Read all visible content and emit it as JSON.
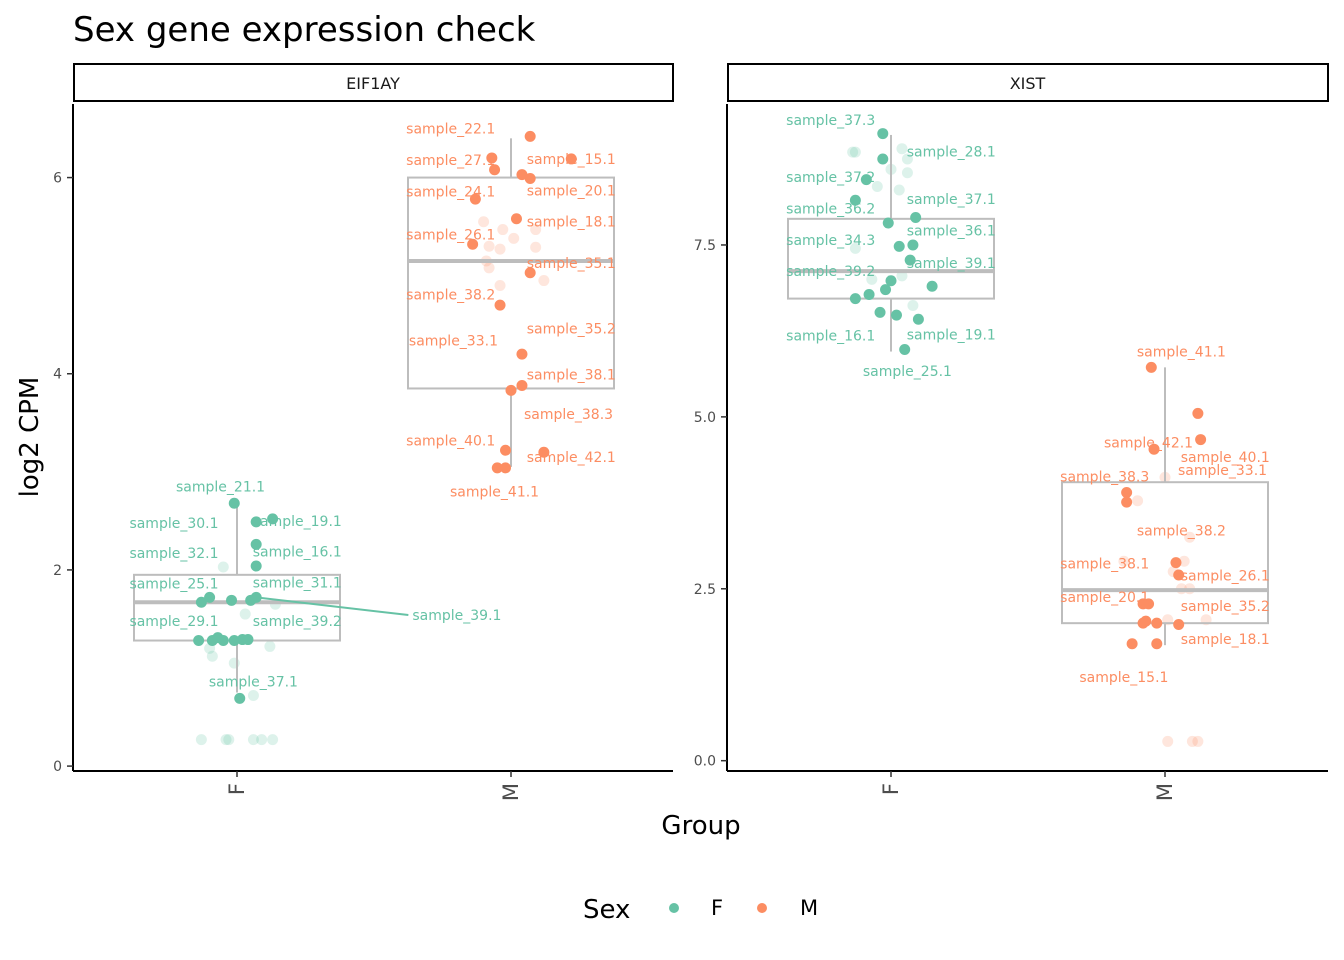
{
  "chart_data": {
    "type": "scatter",
    "title": "Sex gene expression check",
    "xlabel": "Group",
    "ylabel": "log2 CPM",
    "categories": [
      "F",
      "M"
    ],
    "colors": {
      "F": "#66c2a5",
      "M": "#fc8d62",
      "box": "#bdbdbd"
    },
    "legend": {
      "title": "Sex",
      "position": "bottom",
      "entries": [
        "F",
        "M"
      ]
    },
    "panels": [
      {
        "name": "EIF1AY",
        "ylim": [
          -0.05,
          6.75
        ],
        "yticks": [
          0,
          2,
          4,
          6
        ],
        "ytick_labels": [
          "0",
          "2",
          "4",
          "6"
        ],
        "boxes": [
          {
            "group": "F",
            "q1": 1.28,
            "median": 1.67,
            "q3": 1.95,
            "wlow": 0.75,
            "whigh": 2.68
          },
          {
            "group": "M",
            "q1": 3.85,
            "median": 5.15,
            "q3": 6.0,
            "wlow": 3.05,
            "whigh": 6.4
          }
        ],
        "points": [
          {
            "g": "F",
            "x": -0.01,
            "y": 2.68,
            "label": "sample_21.1",
            "lx": -0.06,
            "ly": 2.85
          },
          {
            "g": "F",
            "x": 0.07,
            "y": 2.49,
            "label": "sample_30.1",
            "lx": -0.23,
            "ly": 2.48
          },
          {
            "g": "F",
            "x": 0.13,
            "y": 2.52,
            "label": "sample_19.1",
            "lx": 0.22,
            "ly": 2.5
          },
          {
            "g": "F",
            "x": 0.07,
            "y": 2.26,
            "label": "sample_32.1",
            "lx": -0.23,
            "ly": 2.17
          },
          {
            "g": "F",
            "x": 0.07,
            "y": 2.04,
            "label": "sample_16.1",
            "lx": 0.22,
            "ly": 2.19
          },
          {
            "g": "F",
            "x": -0.13,
            "y": 1.67,
            "label": "sample_25.1",
            "lx": -0.23,
            "ly": 1.86
          },
          {
            "g": "F",
            "x": -0.1,
            "y": 1.72,
            "label": "sample_31.1",
            "lx": 0.22,
            "ly": 1.87
          },
          {
            "g": "F",
            "x": 0.07,
            "y": 1.72,
            "label": "sample_39.1",
            "lx": 0.64,
            "ly": 1.54,
            "seg": true
          },
          {
            "g": "F",
            "x": -0.02,
            "y": 1.69,
            "label": "",
            "lx": 0,
            "ly": 0
          },
          {
            "g": "F",
            "x": 0.05,
            "y": 1.69,
            "label": "",
            "lx": 0,
            "ly": 0
          },
          {
            "g": "F",
            "x": -0.14,
            "y": 1.28,
            "label": "sample_29.1",
            "lx": -0.23,
            "ly": 1.48
          },
          {
            "g": "F",
            "x": -0.09,
            "y": 1.28,
            "label": "sample_39.2",
            "lx": 0.22,
            "ly": 1.48
          },
          {
            "g": "F",
            "x": -0.07,
            "y": 1.31,
            "label": "",
            "lx": 0,
            "ly": 0
          },
          {
            "g": "F",
            "x": -0.05,
            "y": 1.28,
            "label": "",
            "lx": 0,
            "ly": 0
          },
          {
            "g": "F",
            "x": -0.01,
            "y": 1.28,
            "label": "",
            "lx": 0,
            "ly": 0
          },
          {
            "g": "F",
            "x": 0.02,
            "y": 1.29,
            "label": "",
            "lx": 0,
            "ly": 0
          },
          {
            "g": "F",
            "x": 0.04,
            "y": 1.29,
            "label": "",
            "lx": 0,
            "ly": 0
          },
          {
            "g": "F",
            "x": 0.01,
            "y": 0.69,
            "label": "sample_37.1",
            "lx": 0.06,
            "ly": 0.86
          },
          {
            "g": "M",
            "x": 0.07,
            "y": 6.42,
            "label": "sample_22.1",
            "lx": -0.22,
            "ly": 6.5
          },
          {
            "g": "M",
            "x": -0.07,
            "y": 6.2,
            "label": "sample_27.1",
            "lx": -0.22,
            "ly": 6.18
          },
          {
            "g": "M",
            "x": 0.22,
            "y": 6.19,
            "label": "sample_15.1",
            "lx": 0.22,
            "ly": 6.19
          },
          {
            "g": "M",
            "x": -0.06,
            "y": 6.08,
            "label": "",
            "lx": 0,
            "ly": 0
          },
          {
            "g": "M",
            "x": 0.04,
            "y": 6.03,
            "label": "",
            "lx": 0,
            "ly": 0
          },
          {
            "g": "M",
            "x": 0.07,
            "y": 5.99,
            "label": "sample_20.1",
            "lx": 0.22,
            "ly": 5.87
          },
          {
            "g": "M",
            "x": -0.13,
            "y": 5.78,
            "label": "sample_24.1",
            "lx": -0.22,
            "ly": 5.86
          },
          {
            "g": "M",
            "x": 0.02,
            "y": 5.58,
            "label": "sample_18.1",
            "lx": 0.22,
            "ly": 5.55
          },
          {
            "g": "M",
            "x": -0.14,
            "y": 5.32,
            "label": "sample_26.1",
            "lx": -0.22,
            "ly": 5.42
          },
          {
            "g": "M",
            "x": 0.07,
            "y": 5.03,
            "label": "sample_35.1",
            "lx": 0.22,
            "ly": 5.13
          },
          {
            "g": "M",
            "x": -0.04,
            "y": 4.7,
            "label": "sample_38.2",
            "lx": -0.22,
            "ly": 4.81
          },
          {
            "g": "M",
            "x": 0.04,
            "y": 4.2,
            "label": "sample_33.1",
            "lx": -0.21,
            "ly": 4.34
          },
          {
            "g": "M",
            "x": 0.04,
            "y": 3.88,
            "label": "sample_35.2",
            "lx": 0.22,
            "ly": 4.46
          },
          {
            "g": "M",
            "x": 0.0,
            "y": 3.83,
            "label": "sample_38.1",
            "lx": 0.22,
            "ly": 3.99
          },
          {
            "g": "M",
            "x": -0.02,
            "y": 3.22,
            "label": "sample_38.3",
            "lx": 0.21,
            "ly": 3.59
          },
          {
            "g": "M",
            "x": 0.12,
            "y": 3.2,
            "label": "sample_40.1",
            "lx": -0.22,
            "ly": 3.32
          },
          {
            "g": "M",
            "x": -0.02,
            "y": 3.04,
            "label": "sample_42.1",
            "lx": 0.22,
            "ly": 3.15
          },
          {
            "g": "M",
            "x": -0.05,
            "y": 3.04,
            "label": "sample_41.1",
            "lx": -0.06,
            "ly": 2.8
          }
        ],
        "faint": [
          {
            "g": "F",
            "x": -0.05,
            "y": 2.03
          },
          {
            "g": "F",
            "x": -0.1,
            "y": 1.2
          },
          {
            "g": "F",
            "x": -0.09,
            "y": 1.12
          },
          {
            "g": "F",
            "x": -0.01,
            "y": 1.05
          },
          {
            "g": "F",
            "x": 0.03,
            "y": 1.55
          },
          {
            "g": "F",
            "x": 0.12,
            "y": 1.22
          },
          {
            "g": "F",
            "x": 0.14,
            "y": 1.65
          },
          {
            "g": "F",
            "x": 0.06,
            "y": 0.72
          },
          {
            "g": "F",
            "x": -0.13,
            "y": 0.27
          },
          {
            "g": "F",
            "x": -0.04,
            "y": 0.27
          },
          {
            "g": "F",
            "x": -0.03,
            "y": 0.27
          },
          {
            "g": "F",
            "x": 0.06,
            "y": 0.27
          },
          {
            "g": "F",
            "x": 0.09,
            "y": 0.27
          },
          {
            "g": "F",
            "x": 0.13,
            "y": 0.27
          },
          {
            "g": "M",
            "x": -0.1,
            "y": 5.55
          },
          {
            "g": "M",
            "x": -0.03,
            "y": 5.47
          },
          {
            "g": "M",
            "x": 0.09,
            "y": 5.47
          },
          {
            "g": "M",
            "x": 0.01,
            "y": 5.38
          },
          {
            "g": "M",
            "x": -0.08,
            "y": 5.3
          },
          {
            "g": "M",
            "x": -0.04,
            "y": 5.27
          },
          {
            "g": "M",
            "x": 0.09,
            "y": 5.29
          },
          {
            "g": "M",
            "x": -0.09,
            "y": 5.15
          },
          {
            "g": "M",
            "x": -0.08,
            "y": 5.08
          },
          {
            "g": "M",
            "x": 0.12,
            "y": 4.95
          },
          {
            "g": "M",
            "x": -0.04,
            "y": 4.9
          }
        ]
      },
      {
        "name": "XIST",
        "ylim": [
          -0.15,
          9.55
        ],
        "yticks": [
          0,
          2.5,
          5,
          7.5
        ],
        "ytick_labels": [
          "0.0",
          "2.5",
          "5.0",
          "7.5"
        ],
        "boxes": [
          {
            "group": "F",
            "q1": 6.72,
            "median": 7.12,
            "q3": 7.88,
            "wlow": 5.95,
            "whigh": 9.1
          },
          {
            "group": "M",
            "q1": 2.0,
            "median": 2.48,
            "q3": 4.05,
            "wlow": 1.68,
            "whigh": 5.72
          }
        ],
        "points": [
          {
            "g": "F",
            "x": -0.03,
            "y": 9.12,
            "label": "sample_37.3",
            "lx": -0.22,
            "ly": 9.32
          },
          {
            "g": "F",
            "x": -0.03,
            "y": 8.75,
            "label": "sample_28.1",
            "lx": 0.22,
            "ly": 8.86
          },
          {
            "g": "F",
            "x": -0.09,
            "y": 8.45,
            "label": "sample_37.2",
            "lx": -0.22,
            "ly": 8.49
          },
          {
            "g": "F",
            "x": -0.13,
            "y": 8.15,
            "label": "sample_36.2",
            "lx": -0.22,
            "ly": 8.03
          },
          {
            "g": "F",
            "x": 0.09,
            "y": 7.9,
            "label": "sample_37.1",
            "lx": 0.22,
            "ly": 8.17
          },
          {
            "g": "F",
            "x": -0.01,
            "y": 7.82,
            "label": "sample_36.1",
            "lx": 0.22,
            "ly": 7.71
          },
          {
            "g": "F",
            "x": 0.03,
            "y": 7.48,
            "label": "sample_34.3",
            "lx": -0.22,
            "ly": 7.57
          },
          {
            "g": "F",
            "x": 0.08,
            "y": 7.5,
            "label": "",
            "lx": 0,
            "ly": 0
          },
          {
            "g": "F",
            "x": 0.07,
            "y": 7.28,
            "label": "sample_39.1",
            "lx": 0.22,
            "ly": 7.24
          },
          {
            "g": "F",
            "x": -0.13,
            "y": 6.72,
            "label": "sample_39.2",
            "lx": -0.22,
            "ly": 7.12
          },
          {
            "g": "F",
            "x": -0.08,
            "y": 6.78,
            "label": "",
            "lx": 0,
            "ly": 0
          },
          {
            "g": "F",
            "x": -0.02,
            "y": 6.85,
            "label": "",
            "lx": 0,
            "ly": 0
          },
          {
            "g": "F",
            "x": 0.0,
            "y": 6.98,
            "label": "",
            "lx": 0,
            "ly": 0
          },
          {
            "g": "F",
            "x": 0.15,
            "y": 6.9,
            "label": "",
            "lx": 0,
            "ly": 0
          },
          {
            "g": "F",
            "x": -0.04,
            "y": 6.52,
            "label": "sample_16.1",
            "lx": -0.22,
            "ly": 6.18
          },
          {
            "g": "F",
            "x": 0.02,
            "y": 6.48,
            "label": "",
            "lx": 0,
            "ly": 0
          },
          {
            "g": "F",
            "x": 0.1,
            "y": 6.42,
            "label": "sample_19.1",
            "lx": 0.22,
            "ly": 6.2
          },
          {
            "g": "F",
            "x": 0.05,
            "y": 5.98,
            "label": "sample_25.1",
            "lx": 0.06,
            "ly": 5.67
          },
          {
            "g": "M",
            "x": -0.05,
            "y": 5.72,
            "label": "sample_41.1",
            "lx": 0.06,
            "ly": 5.95
          },
          {
            "g": "M",
            "x": 0.12,
            "y": 5.05,
            "label": "sample_42.1",
            "lx": -0.06,
            "ly": 4.63
          },
          {
            "g": "M",
            "x": 0.13,
            "y": 4.67,
            "label": "sample_40.1",
            "lx": 0.22,
            "ly": 4.42
          },
          {
            "g": "M",
            "x": -0.04,
            "y": 4.53,
            "label": "",
            "lx": 0,
            "ly": 0
          },
          {
            "g": "M",
            "x": -0.14,
            "y": 3.9,
            "label": "sample_38.3",
            "lx": -0.22,
            "ly": 4.13
          },
          {
            "g": "M",
            "x": -0.14,
            "y": 3.76,
            "label": "sample_33.1",
            "lx": 0.21,
            "ly": 4.23
          },
          {
            "g": "M",
            "x": 0.04,
            "y": 2.88,
            "label": "sample_38.2",
            "lx": 0.06,
            "ly": 3.35
          },
          {
            "g": "M",
            "x": 0.05,
            "y": 2.7,
            "label": "sample_26.1",
            "lx": 0.22,
            "ly": 2.69
          },
          {
            "g": "M",
            "x": -0.08,
            "y": 2.28,
            "label": "sample_38.1",
            "lx": -0.22,
            "ly": 2.87
          },
          {
            "g": "M",
            "x": -0.06,
            "y": 2.28,
            "label": "sample_20.1",
            "lx": -0.22,
            "ly": 2.38
          },
          {
            "g": "M",
            "x": -0.08,
            "y": 2.0,
            "label": "sample_35.2",
            "lx": 0.22,
            "ly": 2.25
          },
          {
            "g": "M",
            "x": -0.07,
            "y": 2.03,
            "label": "",
            "lx": 0,
            "ly": 0
          },
          {
            "g": "M",
            "x": -0.03,
            "y": 2.0,
            "label": "",
            "lx": 0,
            "ly": 0
          },
          {
            "g": "M",
            "x": 0.05,
            "y": 1.98,
            "label": "sample_18.1",
            "lx": 0.22,
            "ly": 1.77
          },
          {
            "g": "M",
            "x": -0.12,
            "y": 1.7,
            "label": "sample_15.1",
            "lx": -0.15,
            "ly": 1.22
          },
          {
            "g": "M",
            "x": -0.03,
            "y": 1.7,
            "label": "",
            "lx": 0,
            "ly": 0
          }
        ],
        "faint": [
          {
            "g": "F",
            "x": -0.14,
            "y": 8.85
          },
          {
            "g": "F",
            "x": -0.13,
            "y": 8.85
          },
          {
            "g": "F",
            "x": 0.04,
            "y": 8.9
          },
          {
            "g": "F",
            "x": 0.06,
            "y": 8.75
          },
          {
            "g": "F",
            "x": 0.0,
            "y": 8.6
          },
          {
            "g": "F",
            "x": 0.06,
            "y": 8.55
          },
          {
            "g": "F",
            "x": -0.05,
            "y": 8.35
          },
          {
            "g": "F",
            "x": 0.03,
            "y": 8.3
          },
          {
            "g": "F",
            "x": -0.13,
            "y": 7.45
          },
          {
            "g": "F",
            "x": -0.07,
            "y": 7.0
          },
          {
            "g": "F",
            "x": 0.04,
            "y": 7.05
          },
          {
            "g": "F",
            "x": 0.08,
            "y": 6.62
          },
          {
            "g": "M",
            "x": -0.1,
            "y": 3.78
          },
          {
            "g": "M",
            "x": 0.0,
            "y": 4.12
          },
          {
            "g": "M",
            "x": 0.09,
            "y": 3.25
          },
          {
            "g": "M",
            "x": -0.15,
            "y": 2.9
          },
          {
            "g": "M",
            "x": 0.03,
            "y": 2.75
          },
          {
            "g": "M",
            "x": 0.07,
            "y": 2.9
          },
          {
            "g": "M",
            "x": 0.06,
            "y": 2.5
          },
          {
            "g": "M",
            "x": 0.09,
            "y": 2.5
          },
          {
            "g": "M",
            "x": 0.15,
            "y": 2.05
          },
          {
            "g": "M",
            "x": 0.01,
            "y": 2.05
          },
          {
            "g": "M",
            "x": 0.01,
            "y": 0.28
          },
          {
            "g": "M",
            "x": 0.1,
            "y": 0.28
          },
          {
            "g": "M",
            "x": 0.12,
            "y": 0.28
          }
        ]
      }
    ]
  }
}
